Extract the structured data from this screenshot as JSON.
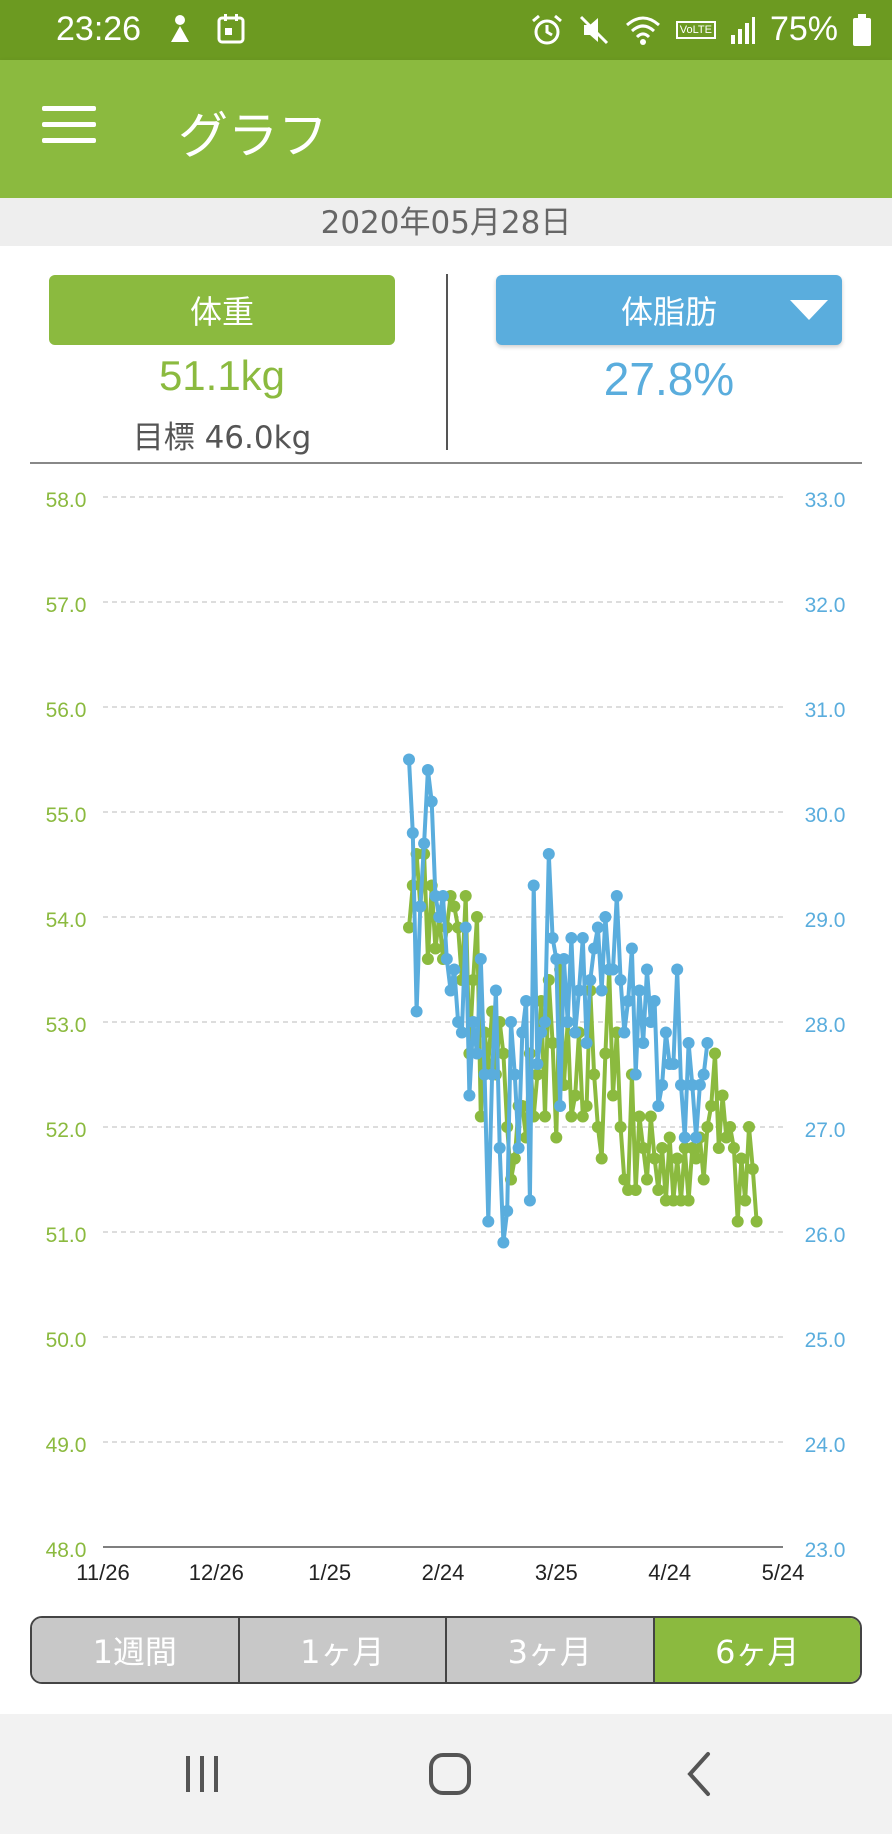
{
  "status": {
    "time": "23:26",
    "battery": "75%",
    "volte": "VoLTE"
  },
  "header": {
    "title": "グラフ"
  },
  "date": "2020年05月28日",
  "summary": {
    "weight_label": "体重",
    "weight_value": "51.1kg",
    "goal_text": "目標 46.0kg",
    "fat_label": "体脂肪",
    "fat_value": "27.8%"
  },
  "chart_data": {
    "type": "line",
    "x_tick_labels": [
      "11/26",
      "12/26",
      "1/25",
      "2/24",
      "3/25",
      "4/24",
      "5/24"
    ],
    "y_left": {
      "range": [
        48.0,
        58.0
      ],
      "tick_labels": [
        "58.0",
        "57.0",
        "56.0",
        "55.0",
        "54.0",
        "53.0",
        "52.0",
        "51.0",
        "50.0",
        "49.0",
        "48.0"
      ]
    },
    "y_right": {
      "range": [
        23.0,
        33.0
      ],
      "tick_labels": [
        "33.0",
        "32.0",
        "31.0",
        "30.0",
        "29.0",
        "28.0",
        "27.0",
        "26.0",
        "25.0",
        "24.0",
        "23.0"
      ]
    },
    "grid": true,
    "series": [
      {
        "axis": "left",
        "color": "#8bba3f",
        "values": [
          [
            81,
            53.9
          ],
          [
            82,
            54.3
          ],
          [
            83,
            54.6
          ],
          [
            84,
            54.1
          ],
          [
            85,
            54.6
          ],
          [
            86,
            53.6
          ],
          [
            87,
            54.3
          ],
          [
            88,
            53.7
          ],
          [
            89,
            54.0
          ],
          [
            90,
            53.6
          ],
          [
            91,
            53.9
          ],
          [
            92,
            54.2
          ],
          [
            93,
            54.1
          ],
          [
            94,
            53.9
          ],
          [
            95,
            53.4
          ],
          [
            96,
            54.2
          ],
          [
            97,
            52.7
          ],
          [
            98,
            53.4
          ],
          [
            99,
            54.0
          ],
          [
            100,
            52.1
          ],
          [
            101,
            52.9
          ],
          [
            102,
            52.6
          ],
          [
            103,
            53.1
          ],
          [
            104,
            52.5
          ],
          [
            105,
            53.0
          ],
          [
            106,
            52.7
          ],
          [
            107,
            52.0
          ],
          [
            108,
            51.5
          ],
          [
            109,
            51.7
          ],
          [
            110,
            52.2
          ],
          [
            111,
            52.2
          ],
          [
            112,
            51.9
          ],
          [
            113,
            52.7
          ],
          [
            114,
            52.1
          ],
          [
            115,
            52.5
          ],
          [
            116,
            53.2
          ],
          [
            117,
            52.1
          ],
          [
            118,
            53.4
          ],
          [
            119,
            52.8
          ],
          [
            120,
            51.9
          ],
          [
            121,
            53.5
          ],
          [
            122,
            52.4
          ],
          [
            123,
            53.0
          ],
          [
            124,
            52.1
          ],
          [
            125,
            52.3
          ],
          [
            126,
            52.9
          ],
          [
            127,
            52.1
          ],
          [
            128,
            52.2
          ],
          [
            129,
            53.3
          ],
          [
            130,
            52.5
          ],
          [
            131,
            52.0
          ],
          [
            132,
            51.7
          ],
          [
            133,
            52.7
          ],
          [
            134,
            53.5
          ],
          [
            135,
            52.3
          ],
          [
            136,
            52.9
          ],
          [
            137,
            52.0
          ],
          [
            138,
            51.5
          ],
          [
            139,
            51.4
          ],
          [
            140,
            52.5
          ],
          [
            141,
            51.4
          ],
          [
            142,
            52.1
          ],
          [
            143,
            51.8
          ],
          [
            144,
            51.5
          ],
          [
            145,
            52.1
          ],
          [
            146,
            51.7
          ],
          [
            147,
            51.4
          ],
          [
            148,
            51.8
          ],
          [
            149,
            51.3
          ],
          [
            150,
            51.9
          ],
          [
            151,
            51.3
          ],
          [
            152,
            51.7
          ],
          [
            153,
            51.3
          ],
          [
            154,
            51.8
          ],
          [
            155,
            51.3
          ],
          [
            156,
            51.8
          ],
          [
            157,
            51.7
          ],
          [
            158,
            51.9
          ],
          [
            159,
            51.5
          ],
          [
            160,
            52.0
          ],
          [
            161,
            52.2
          ],
          [
            162,
            52.7
          ],
          [
            163,
            51.8
          ],
          [
            164,
            52.3
          ],
          [
            165,
            51.9
          ],
          [
            166,
            52.0
          ],
          [
            167,
            51.8
          ],
          [
            168,
            51.1
          ],
          [
            169,
            51.7
          ],
          [
            170,
            51.3
          ],
          [
            171,
            52.0
          ],
          [
            172,
            51.6
          ],
          [
            173,
            51.1
          ]
        ]
      },
      {
        "axis": "right",
        "color": "#5aaddd",
        "values": [
          [
            81,
            30.5
          ],
          [
            82,
            29.8
          ],
          [
            83,
            28.1
          ],
          [
            84,
            29.1
          ],
          [
            85,
            29.7
          ],
          [
            86,
            30.4
          ],
          [
            87,
            30.1
          ],
          [
            88,
            29.2
          ],
          [
            89,
            29.0
          ],
          [
            90,
            29.2
          ],
          [
            91,
            28.6
          ],
          [
            92,
            28.3
          ],
          [
            93,
            28.5
          ],
          [
            94,
            28.0
          ],
          [
            95,
            27.9
          ],
          [
            96,
            28.9
          ],
          [
            97,
            27.3
          ],
          [
            98,
            28.0
          ],
          [
            99,
            27.7
          ],
          [
            100,
            28.6
          ],
          [
            101,
            27.5
          ],
          [
            102,
            26.1
          ],
          [
            103,
            27.5
          ],
          [
            104,
            28.3
          ],
          [
            105,
            26.8
          ],
          [
            106,
            25.9
          ],
          [
            107,
            26.2
          ],
          [
            108,
            28.0
          ],
          [
            109,
            27.5
          ],
          [
            110,
            26.8
          ],
          [
            111,
            27.9
          ],
          [
            112,
            28.2
          ],
          [
            113,
            26.3
          ],
          [
            114,
            29.3
          ],
          [
            115,
            27.6
          ],
          [
            116,
            27.9
          ],
          [
            117,
            28.0
          ],
          [
            118,
            29.6
          ],
          [
            119,
            28.8
          ],
          [
            120,
            28.6
          ],
          [
            121,
            27.2
          ],
          [
            122,
            28.6
          ],
          [
            123,
            28.0
          ],
          [
            124,
            28.8
          ],
          [
            125,
            27.9
          ],
          [
            126,
            28.3
          ],
          [
            127,
            28.8
          ],
          [
            128,
            27.8
          ],
          [
            129,
            28.4
          ],
          [
            130,
            28.7
          ],
          [
            131,
            28.9
          ],
          [
            132,
            28.3
          ],
          [
            133,
            29.0
          ],
          [
            134,
            28.5
          ],
          [
            135,
            28.5
          ],
          [
            136,
            29.2
          ],
          [
            137,
            28.4
          ],
          [
            138,
            27.9
          ],
          [
            139,
            28.2
          ],
          [
            140,
            28.7
          ],
          [
            141,
            27.5
          ],
          [
            142,
            28.3
          ],
          [
            143,
            27.8
          ],
          [
            144,
            28.5
          ],
          [
            145,
            28.0
          ],
          [
            146,
            28.2
          ],
          [
            147,
            27.2
          ],
          [
            148,
            27.4
          ],
          [
            149,
            27.9
          ],
          [
            150,
            27.6
          ],
          [
            151,
            27.6
          ],
          [
            152,
            28.5
          ],
          [
            153,
            27.4
          ],
          [
            154,
            26.9
          ],
          [
            155,
            27.8
          ],
          [
            156,
            27.4
          ],
          [
            157,
            26.9
          ],
          [
            158,
            27.4
          ],
          [
            159,
            27.5
          ],
          [
            160,
            27.8
          ]
        ]
      }
    ]
  },
  "periods": [
    "1週間",
    "1ヶ月",
    "3ヶ月",
    "6ヶ月"
  ],
  "active_period": 3,
  "icons": {
    "menu": "hamburger-icon",
    "dropdown": "triangle-down-icon",
    "nav_recents": "recents-icon",
    "nav_home": "home-icon",
    "nav_back": "back-icon"
  }
}
